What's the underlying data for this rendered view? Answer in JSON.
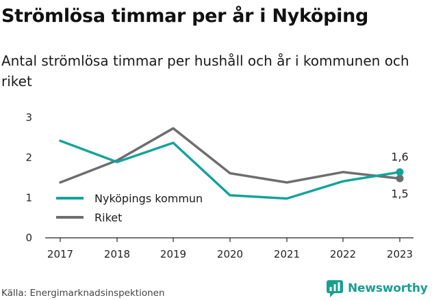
{
  "title": "Strömlösa timmar per år i Nyköping",
  "subtitle": "Antal strömlösa timmar per hushåll och år i kommunen och riket",
  "source": "Källa: Energimarknadsinspektionen",
  "brand": {
    "name": "Newsworthy",
    "icon": "newsworthy-logo-icon",
    "color": "#179f92"
  },
  "chart_data": {
    "type": "line",
    "categories": [
      "2017",
      "2018",
      "2019",
      "2020",
      "2021",
      "2022",
      "2023"
    ],
    "ylim": [
      0,
      3
    ],
    "yticks": [
      "0",
      "1",
      "2",
      "3"
    ],
    "series": [
      {
        "name": "Nyköpings kommun",
        "color": "#14a39a",
        "values": [
          2.42,
          1.89,
          2.37,
          1.06,
          0.98,
          1.41,
          1.64
        ]
      },
      {
        "name": "Riket",
        "color": "#6d6d6d",
        "values": [
          1.38,
          1.93,
          2.73,
          1.61,
          1.38,
          1.64,
          1.48
        ]
      }
    ],
    "end_labels": [
      "1,6",
      "1,5"
    ],
    "legend": "left",
    "grid": false
  }
}
